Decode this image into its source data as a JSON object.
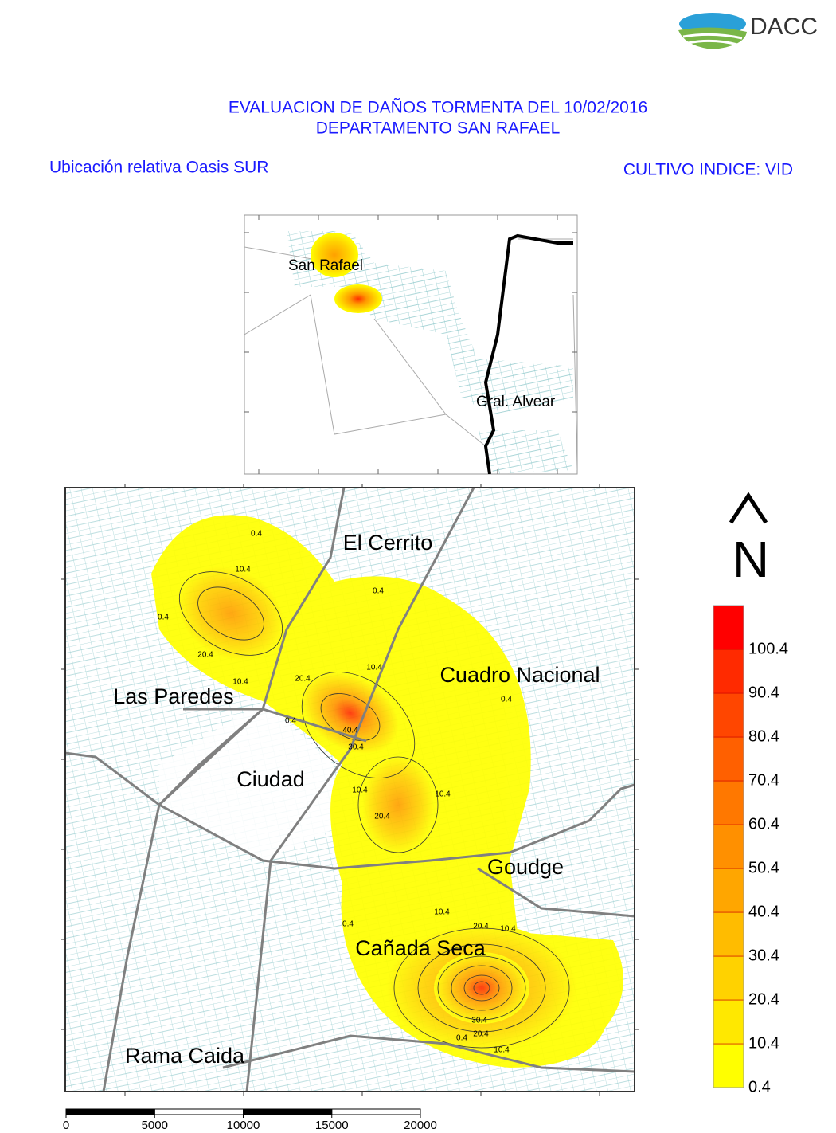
{
  "header": {
    "logo_text": "DACC",
    "title_line1": "EVALUACION DE DAÑOS TORMENTA DEL 10/02/2016",
    "title_line2": "DEPARTAMENTO SAN RAFAEL",
    "subtitle_left": "Ubicación relativa Oasis SUR",
    "subtitle_right": "CULTIVO INDICE: VID"
  },
  "inset_map": {
    "labels": [
      "San Rafael",
      "Gral. Alvear"
    ]
  },
  "main_map": {
    "place_labels": [
      "El Cerrito",
      "Cuadro Nacional",
      "Las Paredes",
      "Ciudad",
      "Goudge",
      "Cañada Seca",
      "Rama Caida"
    ],
    "contour_labels": [
      0.4,
      10.4,
      0.4,
      20.4,
      10.4,
      20.4,
      0.4,
      10.4,
      0.4,
      40.4,
      30.4,
      0.4,
      10.4,
      20.4,
      10.4,
      10.4,
      20.4,
      10.4,
      0.4,
      0.4,
      10.4,
      20.4,
      30.4
    ]
  },
  "north_arrow": {
    "label": "N"
  },
  "legend": {
    "values": [
      0.4,
      10.4,
      20.4,
      30.4,
      40.4,
      50.4,
      60.4,
      70.4,
      80.4,
      90.4,
      100.4
    ],
    "colors": [
      "#ffff00",
      "#ffe800",
      "#ffd200",
      "#ffbc00",
      "#ffa600",
      "#ff9000",
      "#ff7800",
      "#ff6000",
      "#ff4600",
      "#ff2a00",
      "#ff0000"
    ]
  },
  "scale_bar": {
    "ticks": [
      0,
      5000,
      10000,
      15000,
      20000
    ]
  }
}
